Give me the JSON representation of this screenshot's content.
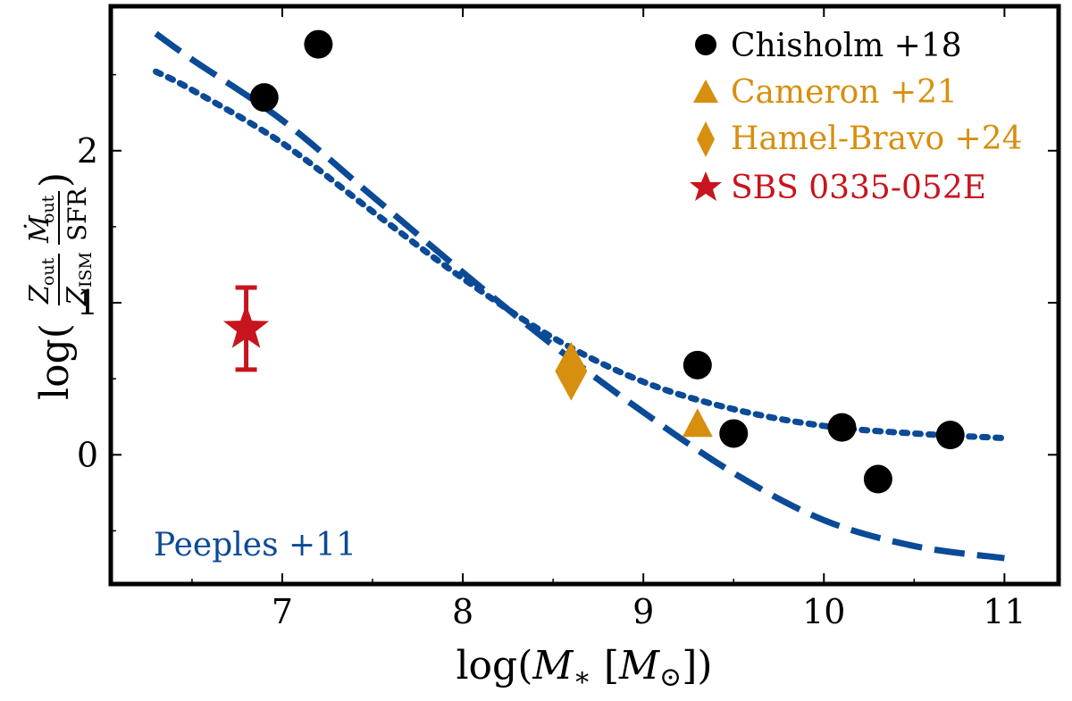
{
  "chart_data": {
    "type": "scatter",
    "xlabel": "log(M* [M⊙])",
    "ylabel": "log( (Z_out / Z_ISM) (Ṁ_out / SFR) )",
    "xlim": [
      6.05,
      11.3
    ],
    "ylim": [
      -0.85,
      2.95
    ],
    "xticks": [
      7,
      8,
      9,
      10,
      11
    ],
    "yticks": [
      0,
      1,
      2
    ],
    "xtick_labels": [
      "7",
      "8",
      "9",
      "10",
      "11"
    ],
    "ytick_labels": [
      "0",
      "1",
      "2"
    ],
    "series": [
      {
        "name": "Chisholm +18",
        "marker": "circle",
        "color": "#000000",
        "points": [
          {
            "x": 6.9,
            "y": 2.35
          },
          {
            "x": 7.2,
            "y": 2.7
          },
          {
            "x": 9.3,
            "y": 0.59
          },
          {
            "x": 9.5,
            "y": 0.14
          },
          {
            "x": 10.1,
            "y": 0.18
          },
          {
            "x": 10.3,
            "y": -0.16
          },
          {
            "x": 10.7,
            "y": 0.13
          }
        ]
      },
      {
        "name": "Cameron +21",
        "marker": "triangle",
        "color": "#d78f0f",
        "points": [
          {
            "x": 9.3,
            "y": 0.2
          }
        ]
      },
      {
        "name": "Hamel-Bravo +24",
        "marker": "diamond",
        "color": "#d78f0f",
        "points": [
          {
            "x": 8.6,
            "y": 0.55
          }
        ]
      },
      {
        "name": "SBS 0335-052E",
        "marker": "star",
        "color": "#c8141e",
        "points": [
          {
            "x": 6.8,
            "y": 0.83,
            "yerr_low": 0.27,
            "yerr_high": 0.27
          }
        ]
      }
    ],
    "model_lines": [
      {
        "name": "Peeples +11 (dashed)",
        "style": "dashed",
        "color": "#0b4a96",
        "x": [
          6.3,
          6.5,
          7.0,
          7.5,
          8.0,
          8.5,
          9.0,
          9.5,
          10.0,
          10.5,
          11.0
        ],
        "y": [
          2.77,
          2.6,
          2.2,
          1.7,
          1.2,
          0.72,
          0.28,
          -0.12,
          -0.43,
          -0.6,
          -0.68
        ]
      },
      {
        "name": "Peeples +11 (dotted)",
        "style": "dotted",
        "color": "#0b4a96",
        "x": [
          6.3,
          6.5,
          7.0,
          7.5,
          8.0,
          8.5,
          9.0,
          9.5,
          10.0,
          10.5,
          11.0
        ],
        "y": [
          2.52,
          2.4,
          2.05,
          1.6,
          1.16,
          0.77,
          0.48,
          0.3,
          0.19,
          0.14,
          0.11
        ]
      }
    ],
    "legend": {
      "placement": "top-right",
      "entries": [
        "Chisholm +18",
        "Cameron +21",
        "Hamel-Bravo +24",
        "SBS 0335-052E"
      ]
    },
    "annotation": {
      "text": "Peeples +11",
      "placement": "bottom-left",
      "color": "#0b4a96"
    }
  }
}
